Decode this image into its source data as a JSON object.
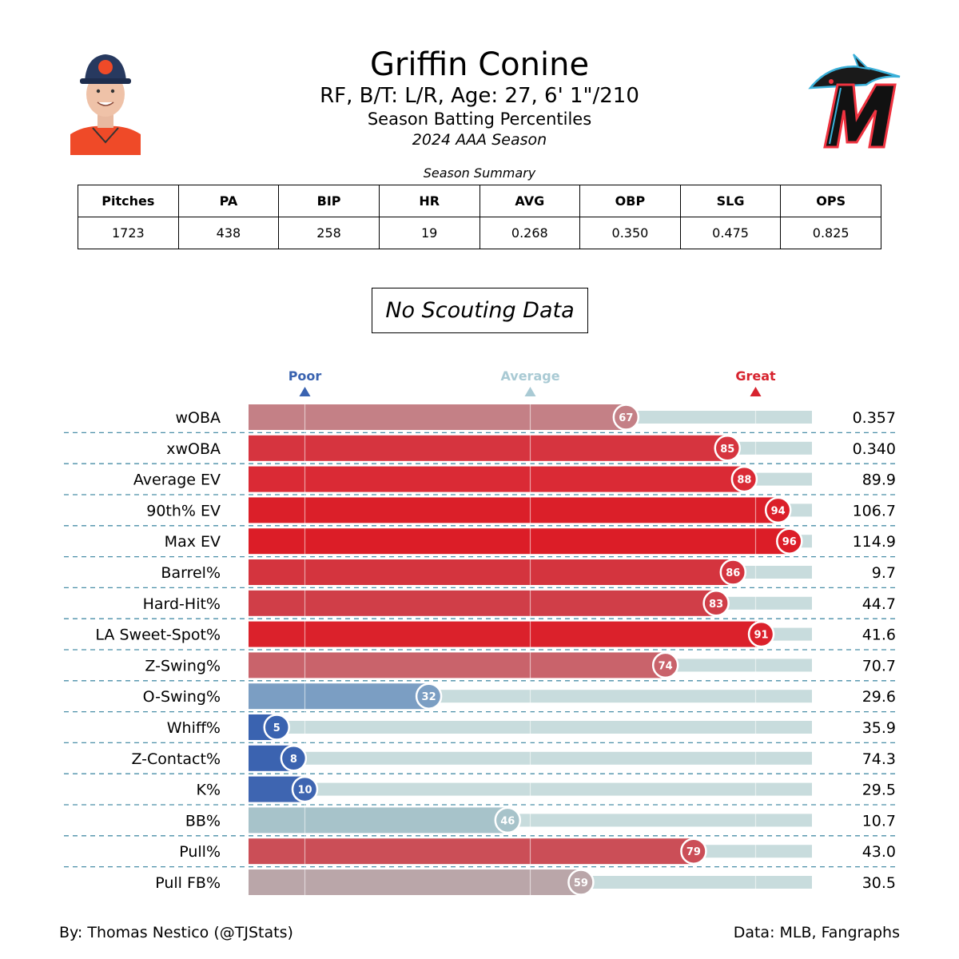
{
  "header": {
    "name": "Griffin Conine",
    "info": "RF, B/T: L/R, Age: 27, 6' 1\"/210",
    "subtitle": "Season Batting Percentiles",
    "season": "2024 AAA Season"
  },
  "summary": {
    "caption": "Season Summary",
    "columns": [
      "Pitches",
      "PA",
      "BIP",
      "HR",
      "AVG",
      "OBP",
      "SLG",
      "OPS"
    ],
    "values": [
      "1723",
      "438",
      "258",
      "19",
      "0.268",
      "0.350",
      "0.475",
      "0.825"
    ]
  },
  "scouting": {
    "label": "No Scouting Data"
  },
  "chart_data": {
    "type": "bar",
    "orientation": "horizontal",
    "xlim": [
      0,
      100
    ],
    "markers": [
      {
        "label": "Poor",
        "x": 10,
        "color": "#3a63b0"
      },
      {
        "label": "Average",
        "x": 50,
        "color": "#a9cad4"
      },
      {
        "label": "Great",
        "x": 90,
        "color": "#d7232e"
      }
    ],
    "categories": [
      "wOBA",
      "xwOBA",
      "Average EV",
      "90th% EV",
      "Max EV",
      "Barrel%",
      "Hard-Hit%",
      "LA Sweet-Spot%",
      "Z-Swing%",
      "O-Swing%",
      "Whiff%",
      "Z-Contact%",
      "K%",
      "BB%",
      "Pull%",
      "Pull FB%"
    ],
    "percentiles": [
      67,
      85,
      88,
      94,
      96,
      86,
      83,
      91,
      74,
      32,
      5,
      8,
      10,
      46,
      79,
      59
    ],
    "stat_values": [
      "0.357",
      "0.340",
      "89.9",
      "106.7",
      "114.9",
      "9.7",
      "44.7",
      "41.6",
      "70.7",
      "29.6",
      "35.9",
      "74.3",
      "29.5",
      "10.7",
      "43.0",
      "30.5"
    ],
    "bar_colors": [
      "#c48086",
      "#d6343f",
      "#da2a35",
      "#db1f29",
      "#dc1d27",
      "#d4343e",
      "#d03e48",
      "#db212b",
      "#c9636b",
      "#7b9ec3",
      "#3a63b0",
      "#3b63b0",
      "#3e65b1",
      "#a7c3ca",
      "#cb4e57",
      "#baa6a9"
    ],
    "track_color": "#c8dcdd"
  },
  "footer": {
    "credit": "By: Thomas Nestico (@TJStats)",
    "source": "Data: MLB, Fangraphs"
  }
}
